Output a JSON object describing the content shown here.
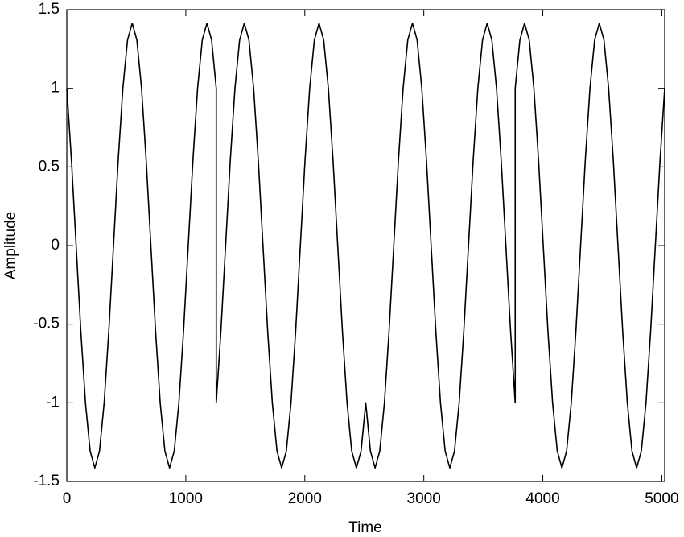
{
  "chart_data": {
    "type": "line",
    "xlabel": "Time",
    "ylabel": "Amplitude",
    "x": [
      0,
      39.25,
      78.5,
      117.75,
      157,
      196.25,
      235.5,
      274.75,
      314,
      353.25,
      392.5,
      431.75,
      471,
      510.25,
      549.5,
      588.75,
      628,
      667.25,
      706.5,
      745.75,
      785,
      824.25,
      863.5,
      902.75,
      942,
      981.25,
      1020.5,
      1059.75,
      1099,
      1138.25,
      1177.5,
      1216.75,
      1256,
      1256,
      1295.25,
      1334.5,
      1373.75,
      1413,
      1452.25,
      1491.5,
      1530.75,
      1570,
      1609.25,
      1648.5,
      1687.75,
      1727,
      1766.25,
      1805.5,
      1844.75,
      1884,
      1923.25,
      1962.5,
      2001.75,
      2041,
      2080.25,
      2119.5,
      2158.75,
      2198,
      2237.25,
      2276.5,
      2315.75,
      2355,
      2394.25,
      2433.5,
      2472.75,
      2512,
      2551.25,
      2590.5,
      2629.75,
      2669,
      2708.25,
      2747.5,
      2786.75,
      2826,
      2865.25,
      2904.5,
      2943.75,
      2983,
      3022.25,
      3061.5,
      3100.75,
      3140,
      3179.25,
      3218.5,
      3257.75,
      3297,
      3336.25,
      3375.5,
      3414.75,
      3454,
      3493.25,
      3532.5,
      3571.75,
      3611,
      3650.25,
      3689.5,
      3728.75,
      3768,
      3768,
      3807.25,
      3846.5,
      3885.75,
      3925,
      3964.25,
      4003.5,
      4042.75,
      4082,
      4121.25,
      4160.5,
      4199.75,
      4239,
      4278.25,
      4317.5,
      4356.75,
      4396,
      4435.25,
      4474.5,
      4513.75,
      4553,
      4592.25,
      4631.5,
      4670.75,
      4710,
      4749.25,
      4788.5,
      4827.75,
      4867,
      4906.25,
      4945.5,
      4984.75,
      5024
    ],
    "series": [
      {
        "color": "#000000",
        "values": [
          1,
          0.541,
          0,
          -0.541,
          -1,
          -1.307,
          -1.414,
          -1.307,
          -1,
          -0.541,
          0,
          0.541,
          1,
          1.307,
          1.414,
          1.307,
          1,
          0.541,
          0,
          -0.541,
          -1,
          -1.307,
          -1.414,
          -1.307,
          -1,
          -0.541,
          0,
          0.541,
          1,
          1.307,
          1.414,
          1.307,
          1,
          -1,
          -0.541,
          0,
          0.541,
          1,
          1.307,
          1.414,
          1.307,
          1,
          0.541,
          0,
          -0.541,
          -1,
          -1.307,
          -1.414,
          -1.307,
          -1,
          -0.541,
          0,
          0.541,
          1,
          1.307,
          1.414,
          1.307,
          1,
          0.541,
          0,
          -0.541,
          -1,
          -1.307,
          -1.414,
          -1.307,
          -1,
          -1.307,
          -1.414,
          -1.307,
          -1,
          -0.541,
          0,
          0.541,
          1,
          1.307,
          1.414,
          1.307,
          1,
          0.541,
          0,
          -0.541,
          -1,
          -1.307,
          -1.414,
          -1.307,
          -1,
          -0.541,
          0,
          0.541,
          1,
          1.307,
          1.414,
          1.307,
          1,
          0.541,
          0,
          -0.541,
          -1,
          1,
          1.307,
          1.414,
          1.307,
          1,
          0.541,
          0,
          -0.541,
          -1,
          -1.307,
          -1.414,
          -1.307,
          -1,
          -0.541,
          0,
          0.541,
          1,
          1.307,
          1.414,
          1.307,
          1,
          0.541,
          0,
          -0.541,
          -1,
          -1.307,
          -1.414,
          -1.307,
          -1,
          -0.541,
          0,
          0.541,
          1
        ]
      }
    ],
    "xlim": [
      0,
      5024
    ],
    "ylim": [
      -1.5,
      1.5
    ],
    "xticks": [
      0,
      1000,
      2000,
      3000,
      4000,
      5000
    ],
    "yticks": [
      -1.5,
      -1,
      -0.5,
      0,
      0.5,
      1,
      1.5
    ]
  }
}
